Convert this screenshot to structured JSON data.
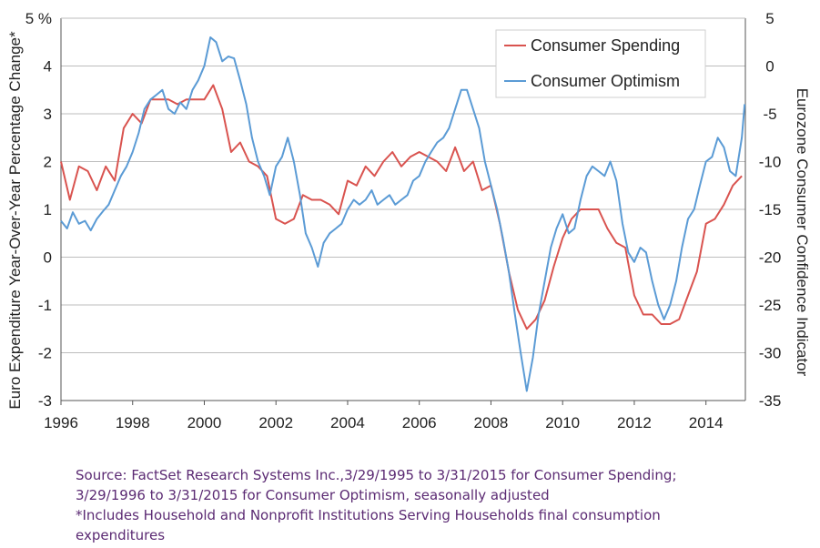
{
  "chart_data": {
    "type": "line",
    "ylabel_left": "Euro Expenditure Year-Over-Year Percentage Change*",
    "ylabel_right": "Eurozone Consumer Confidence Indicator",
    "left_axis": {
      "ylim": [
        -3,
        5
      ],
      "ticks": [
        "5 %",
        "4",
        "3",
        "2",
        "1",
        "0",
        "-1",
        "-2",
        "-3"
      ]
    },
    "right_axis": {
      "ylim": [
        -35,
        5
      ],
      "ticks": [
        "5",
        "0",
        "-5",
        "-10",
        "-15",
        "-20",
        "-25",
        "-30",
        "-35"
      ]
    },
    "x_axis": {
      "xlim": [
        1996,
        2015.1
      ],
      "ticks": [
        "1996",
        "1998",
        "2000",
        "2002",
        "2004",
        "2006",
        "2008",
        "2010",
        "2012",
        "2014"
      ]
    },
    "grid": "horizontal",
    "legend_placement": "top-right",
    "series": [
      {
        "name": "Consumer Spending",
        "axis": "left",
        "color": "#d9534f",
        "points": [
          [
            1996.0,
            2.0
          ],
          [
            1996.25,
            1.2
          ],
          [
            1996.5,
            1.9
          ],
          [
            1996.75,
            1.8
          ],
          [
            1997.0,
            1.4
          ],
          [
            1997.25,
            1.9
          ],
          [
            1997.5,
            1.6
          ],
          [
            1997.75,
            2.7
          ],
          [
            1998.0,
            3.0
          ],
          [
            1998.25,
            2.8
          ],
          [
            1998.5,
            3.3
          ],
          [
            1998.75,
            3.3
          ],
          [
            1999.0,
            3.3
          ],
          [
            1999.25,
            3.2
          ],
          [
            1999.5,
            3.3
          ],
          [
            1999.75,
            3.3
          ],
          [
            2000.0,
            3.3
          ],
          [
            2000.25,
            3.6
          ],
          [
            2000.5,
            3.1
          ],
          [
            2000.75,
            2.2
          ],
          [
            2001.0,
            2.4
          ],
          [
            2001.25,
            2.0
          ],
          [
            2001.5,
            1.9
          ],
          [
            2001.75,
            1.7
          ],
          [
            2002.0,
            0.8
          ],
          [
            2002.25,
            0.7
          ],
          [
            2002.5,
            0.8
          ],
          [
            2002.75,
            1.3
          ],
          [
            2003.0,
            1.2
          ],
          [
            2003.25,
            1.2
          ],
          [
            2003.5,
            1.1
          ],
          [
            2003.75,
            0.9
          ],
          [
            2004.0,
            1.6
          ],
          [
            2004.25,
            1.5
          ],
          [
            2004.5,
            1.9
          ],
          [
            2004.75,
            1.7
          ],
          [
            2005.0,
            2.0
          ],
          [
            2005.25,
            2.2
          ],
          [
            2005.5,
            1.9
          ],
          [
            2005.75,
            2.1
          ],
          [
            2006.0,
            2.2
          ],
          [
            2006.25,
            2.1
          ],
          [
            2006.5,
            2.0
          ],
          [
            2006.75,
            1.8
          ],
          [
            2007.0,
            2.3
          ],
          [
            2007.25,
            1.8
          ],
          [
            2007.5,
            2.0
          ],
          [
            2007.75,
            1.4
          ],
          [
            2008.0,
            1.5
          ],
          [
            2008.25,
            0.7
          ],
          [
            2008.5,
            -0.3
          ],
          [
            2008.75,
            -1.1
          ],
          [
            2009.0,
            -1.5
          ],
          [
            2009.25,
            -1.3
          ],
          [
            2009.5,
            -0.9
          ],
          [
            2009.75,
            -0.2
          ],
          [
            2010.0,
            0.4
          ],
          [
            2010.25,
            0.8
          ],
          [
            2010.5,
            1.0
          ],
          [
            2010.75,
            1.0
          ],
          [
            2011.0,
            1.0
          ],
          [
            2011.25,
            0.6
          ],
          [
            2011.5,
            0.3
          ],
          [
            2011.75,
            0.2
          ],
          [
            2012.0,
            -0.8
          ],
          [
            2012.25,
            -1.2
          ],
          [
            2012.5,
            -1.2
          ],
          [
            2012.75,
            -1.4
          ],
          [
            2013.0,
            -1.4
          ],
          [
            2013.25,
            -1.3
          ],
          [
            2013.5,
            -0.8
          ],
          [
            2013.75,
            -0.3
          ],
          [
            2014.0,
            0.7
          ],
          [
            2014.25,
            0.8
          ],
          [
            2014.5,
            1.1
          ],
          [
            2014.75,
            1.5
          ],
          [
            2015.0,
            1.7
          ]
        ]
      },
      {
        "name": "Consumer Optimism",
        "axis": "right",
        "color": "#5b9bd5",
        "points": [
          [
            1996.0,
            -16.2
          ],
          [
            1996.17,
            -17.0
          ],
          [
            1996.33,
            -15.3
          ],
          [
            1996.5,
            -16.5
          ],
          [
            1996.67,
            -16.2
          ],
          [
            1996.83,
            -17.2
          ],
          [
            1997.0,
            -16.0
          ],
          [
            1997.17,
            -15.2
          ],
          [
            1997.33,
            -14.5
          ],
          [
            1997.5,
            -13.0
          ],
          [
            1997.67,
            -11.5
          ],
          [
            1997.83,
            -10.5
          ],
          [
            1998.0,
            -9.0
          ],
          [
            1998.17,
            -7.0
          ],
          [
            1998.33,
            -4.5
          ],
          [
            1998.5,
            -3.5
          ],
          [
            1998.67,
            -3.0
          ],
          [
            1998.83,
            -2.5
          ],
          [
            1999.0,
            -4.5
          ],
          [
            1999.17,
            -5.0
          ],
          [
            1999.33,
            -3.8
          ],
          [
            1999.5,
            -4.5
          ],
          [
            1999.67,
            -2.5
          ],
          [
            1999.83,
            -1.5
          ],
          [
            2000.0,
            0.0
          ],
          [
            2000.17,
            3.0
          ],
          [
            2000.33,
            2.5
          ],
          [
            2000.5,
            0.5
          ],
          [
            2000.67,
            1.0
          ],
          [
            2000.83,
            0.8
          ],
          [
            2001.0,
            -1.5
          ],
          [
            2001.17,
            -4.0
          ],
          [
            2001.33,
            -7.5
          ],
          [
            2001.5,
            -10.0
          ],
          [
            2001.67,
            -11.5
          ],
          [
            2001.83,
            -13.5
          ],
          [
            2002.0,
            -10.5
          ],
          [
            2002.17,
            -9.5
          ],
          [
            2002.33,
            -7.5
          ],
          [
            2002.5,
            -10.0
          ],
          [
            2002.67,
            -13.5
          ],
          [
            2002.83,
            -17.5
          ],
          [
            2003.0,
            -19.0
          ],
          [
            2003.17,
            -21.0
          ],
          [
            2003.33,
            -18.5
          ],
          [
            2003.5,
            -17.5
          ],
          [
            2003.67,
            -17.0
          ],
          [
            2003.83,
            -16.5
          ],
          [
            2004.0,
            -15.0
          ],
          [
            2004.17,
            -14.0
          ],
          [
            2004.33,
            -14.5
          ],
          [
            2004.5,
            -14.0
          ],
          [
            2004.67,
            -13.0
          ],
          [
            2004.83,
            -14.5
          ],
          [
            2005.0,
            -14.0
          ],
          [
            2005.17,
            -13.5
          ],
          [
            2005.33,
            -14.5
          ],
          [
            2005.5,
            -14.0
          ],
          [
            2005.67,
            -13.5
          ],
          [
            2005.83,
            -12.0
          ],
          [
            2006.0,
            -11.5
          ],
          [
            2006.17,
            -10.0
          ],
          [
            2006.33,
            -9.0
          ],
          [
            2006.5,
            -8.0
          ],
          [
            2006.67,
            -7.5
          ],
          [
            2006.83,
            -6.5
          ],
          [
            2007.0,
            -4.5
          ],
          [
            2007.17,
            -2.5
          ],
          [
            2007.33,
            -2.5
          ],
          [
            2007.5,
            -4.5
          ],
          [
            2007.67,
            -6.5
          ],
          [
            2007.83,
            -10.0
          ],
          [
            2008.0,
            -12.5
          ],
          [
            2008.17,
            -15.0
          ],
          [
            2008.33,
            -18.0
          ],
          [
            2008.5,
            -21.5
          ],
          [
            2008.67,
            -26.0
          ],
          [
            2008.83,
            -30.0
          ],
          [
            2009.0,
            -34.0
          ],
          [
            2009.17,
            -30.5
          ],
          [
            2009.33,
            -26.0
          ],
          [
            2009.5,
            -22.5
          ],
          [
            2009.67,
            -19.0
          ],
          [
            2009.83,
            -17.0
          ],
          [
            2010.0,
            -15.5
          ],
          [
            2010.17,
            -17.5
          ],
          [
            2010.33,
            -17.0
          ],
          [
            2010.5,
            -14.0
          ],
          [
            2010.67,
            -11.5
          ],
          [
            2010.83,
            -10.5
          ],
          [
            2011.0,
            -11.0
          ],
          [
            2011.17,
            -11.5
          ],
          [
            2011.33,
            -10.0
          ],
          [
            2011.5,
            -12.0
          ],
          [
            2011.67,
            -16.5
          ],
          [
            2011.83,
            -19.5
          ],
          [
            2012.0,
            -20.5
          ],
          [
            2012.17,
            -19.0
          ],
          [
            2012.33,
            -19.5
          ],
          [
            2012.5,
            -22.5
          ],
          [
            2012.67,
            -25.0
          ],
          [
            2012.83,
            -26.5
          ],
          [
            2013.0,
            -25.0
          ],
          [
            2013.17,
            -22.5
          ],
          [
            2013.33,
            -19.0
          ],
          [
            2013.5,
            -16.0
          ],
          [
            2013.67,
            -15.0
          ],
          [
            2013.83,
            -12.5
          ],
          [
            2014.0,
            -10.0
          ],
          [
            2014.17,
            -9.5
          ],
          [
            2014.33,
            -7.5
          ],
          [
            2014.5,
            -8.5
          ],
          [
            2014.67,
            -11.0
          ],
          [
            2014.83,
            -11.5
          ],
          [
            2015.0,
            -7.5
          ],
          [
            2015.08,
            -4.0
          ]
        ]
      }
    ]
  },
  "notes": [
    "Source: FactSet Research Systems Inc.,3/29/1995 to 3/31/2015 for Consumer Spending;",
    "3/29/1996 to 3/31/2015 for Consumer Optimism, seasonally adjusted",
    "*Includes Household and Nonprofit Institutions Serving Households final consumption",
    "expenditures"
  ]
}
